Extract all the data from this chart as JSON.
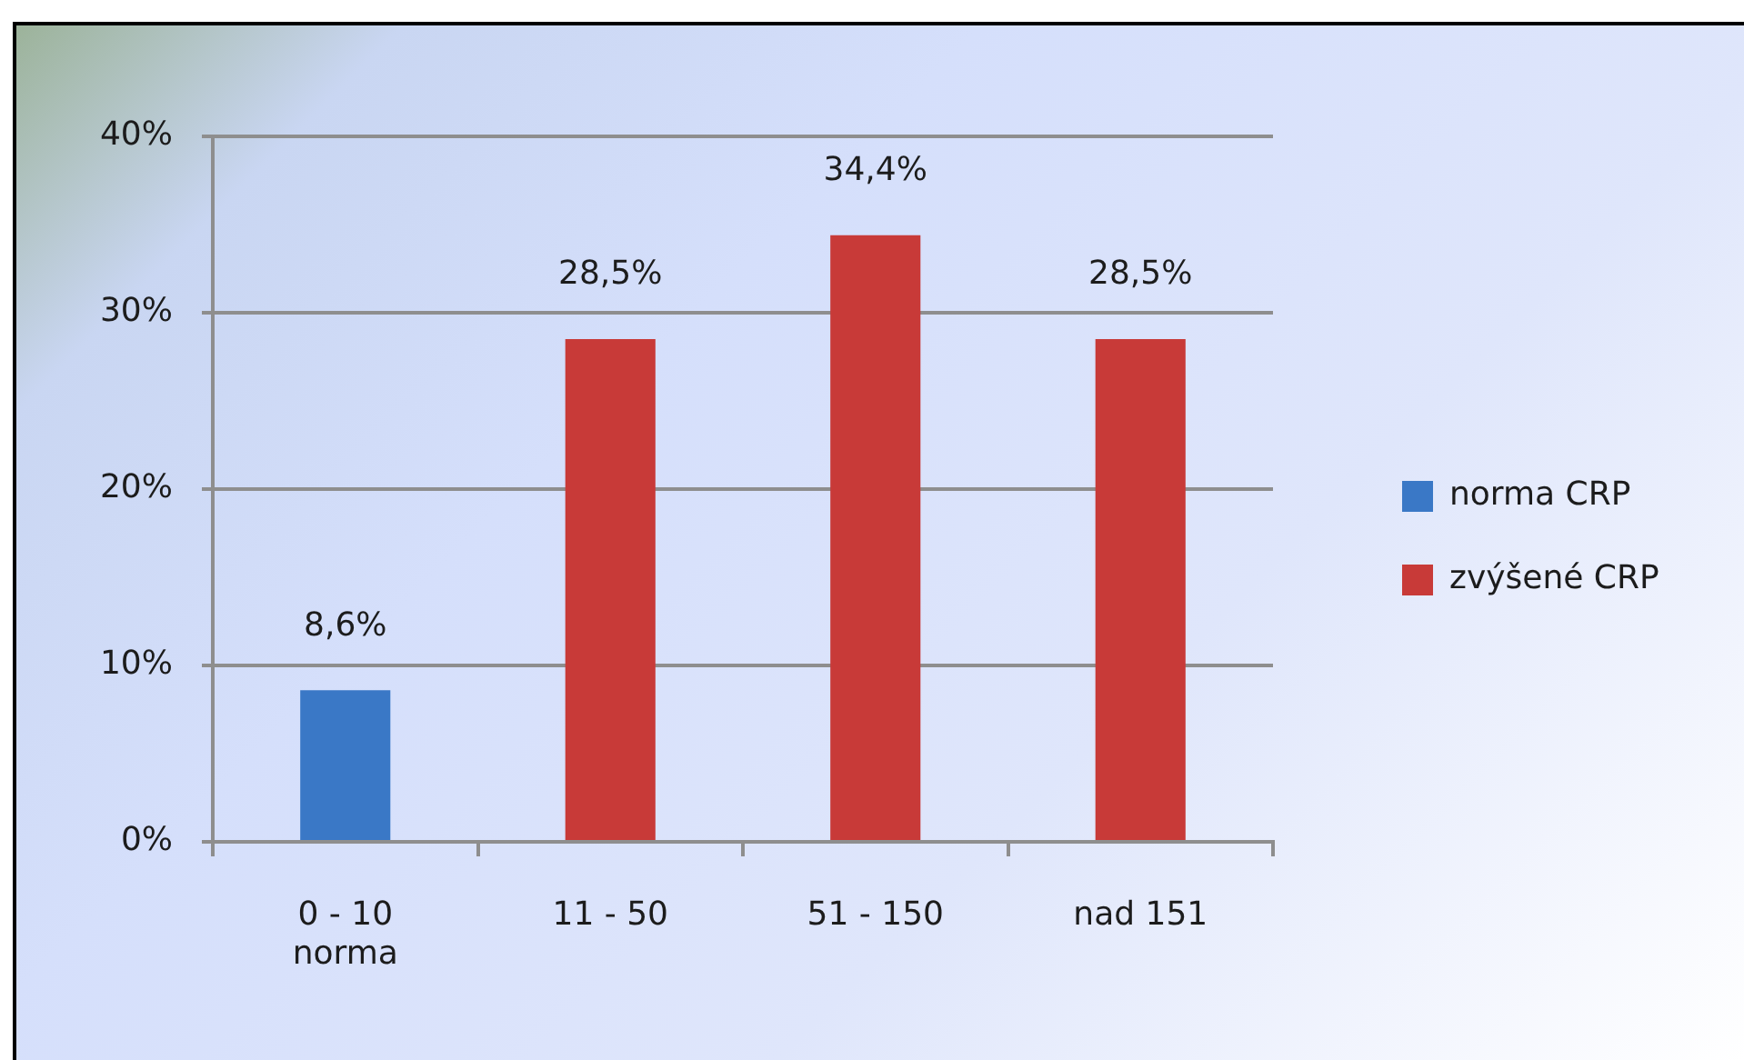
{
  "chart_data": {
    "type": "bar",
    "categories": [
      "0 - 10\nnorma",
      "11 - 50",
      "51 - 150",
      "nad 151"
    ],
    "series": [
      {
        "name": "norma CRP",
        "color": "#3a78c6",
        "values": [
          8.6,
          null,
          null,
          null
        ],
        "value_labels": [
          "8,6%",
          null,
          null,
          null
        ]
      },
      {
        "name": "zvýšené CRP",
        "color": "#c83a38",
        "values": [
          null,
          28.5,
          34.4,
          28.5
        ],
        "value_labels": [
          null,
          "28,5%",
          "34,4%",
          "28,5%"
        ]
      }
    ],
    "ylim": [
      0,
      40
    ],
    "yticks": [
      {
        "value": 0,
        "label": "0%"
      },
      {
        "value": 10,
        "label": "10%"
      },
      {
        "value": 20,
        "label": "20%"
      },
      {
        "value": 30,
        "label": "30%"
      },
      {
        "value": 40,
        "label": "40%"
      }
    ],
    "grid": "y",
    "legend": "right"
  }
}
